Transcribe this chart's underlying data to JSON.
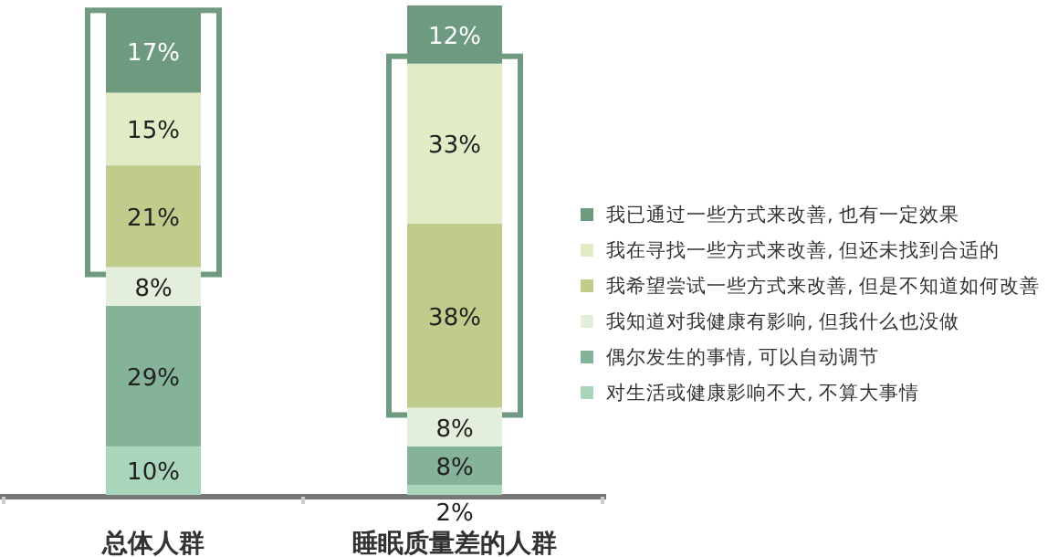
{
  "chart_data": {
    "type": "bar",
    "stacked": true,
    "legend": "right",
    "categories": [
      "总体人群",
      "睡眠质量差的人群"
    ],
    "series": [
      {
        "name": "对生活或健康影响不大, 不算大事情",
        "color": "#a8d5bb",
        "values": [
          10,
          2
        ],
        "value_labels": [
          "10%",
          "2%"
        ]
      },
      {
        "name": "偶尔发生的事情, 可以自动调节",
        "color": "#85b39a",
        "values": [
          29,
          8
        ],
        "value_labels": [
          "29%",
          "8%"
        ]
      },
      {
        "name": "我知道对我健康有影响, 但我什么也没做",
        "color": "#e4efdb",
        "values": [
          8,
          8
        ],
        "value_labels": [
          "8%",
          "8%"
        ]
      },
      {
        "name": "我希望尝试一些方式来改善, 但是不知道如何改善",
        "color": "#c0cc8c",
        "values": [
          21,
          38
        ],
        "value_labels": [
          "21%",
          "38%"
        ]
      },
      {
        "name": "我在寻找一些方式来改善, 但还未找到合适的",
        "color": "#dfecc5",
        "values": [
          15,
          33
        ],
        "value_labels": [
          "15%",
          "33%"
        ]
      },
      {
        "name": "我已通过一些方式来改善, 也有一定效果",
        "color": "#6e9a80",
        "values": [
          17,
          12
        ],
        "value_labels": [
          "17%",
          "12%"
        ]
      }
    ]
  }
}
